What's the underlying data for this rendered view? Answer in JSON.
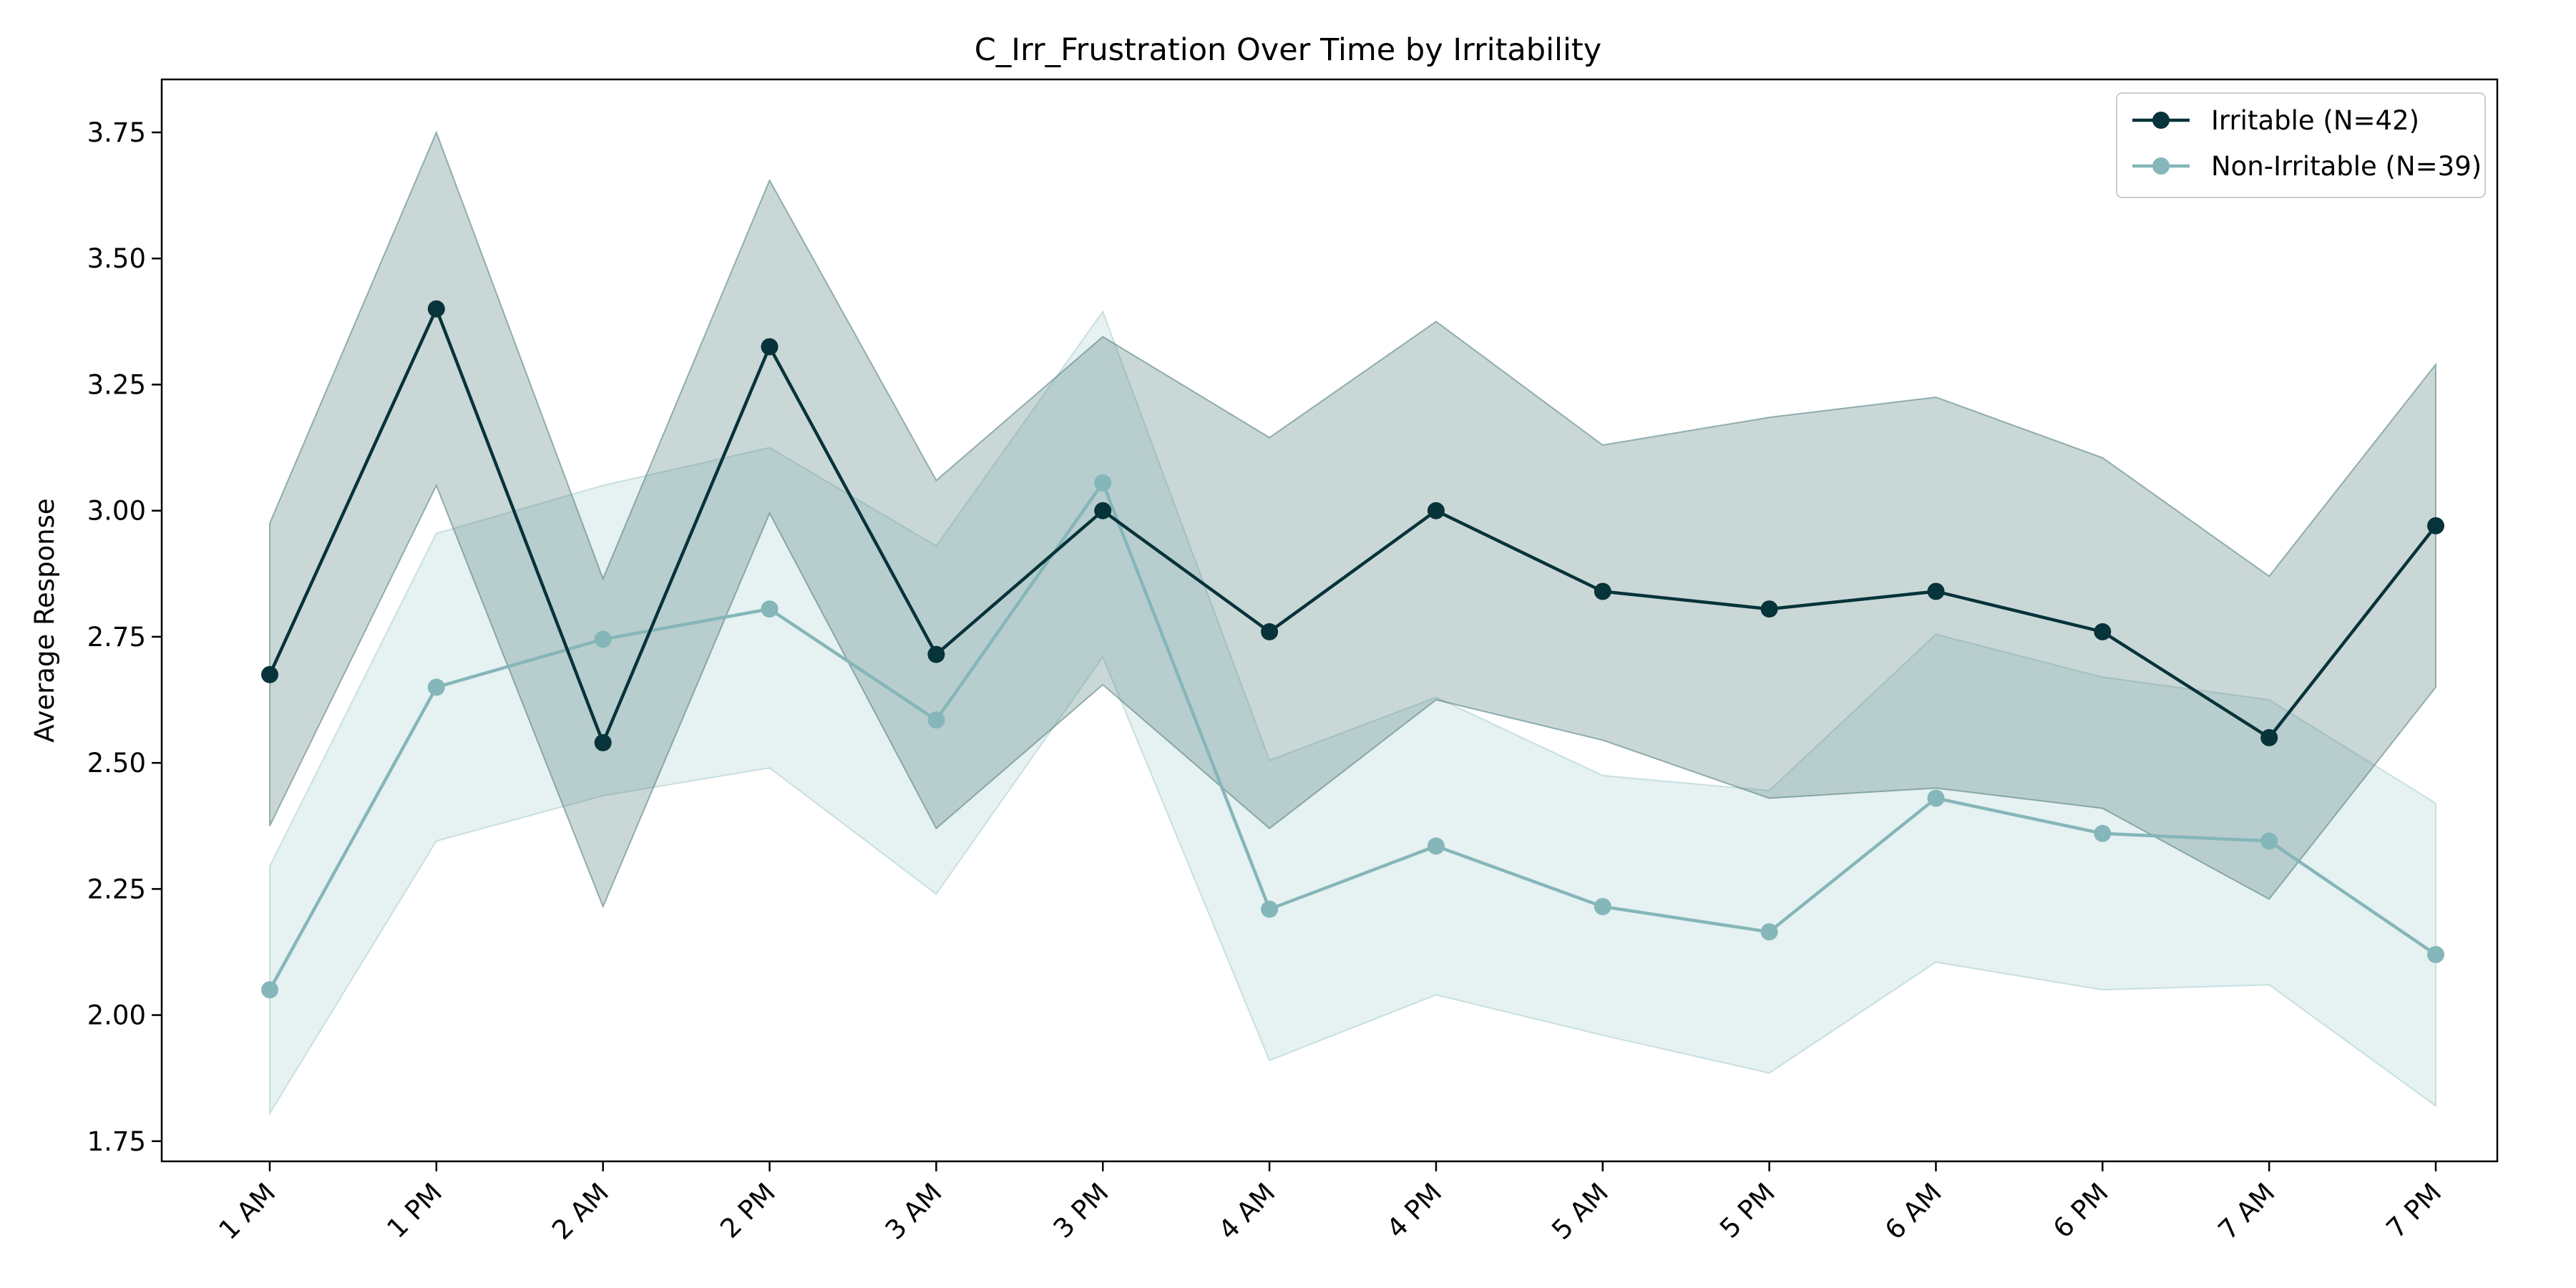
{
  "chart_data": {
    "type": "line",
    "title": "C_Irr_Frustration Over Time by Irritability",
    "xlabel": "",
    "ylabel": "Average Response",
    "categories": [
      "1 AM",
      "1 PM",
      "2 AM",
      "2 PM",
      "3 AM",
      "3 PM",
      "4 AM",
      "4 PM",
      "5 AM",
      "5 PM",
      "6 AM",
      "6 PM",
      "7 AM",
      "7 PM"
    ],
    "ylim": [
      1.71,
      3.855
    ],
    "yticks": [
      1.75,
      2.0,
      2.25,
      2.5,
      2.75,
      3.0,
      3.25,
      3.5,
      3.75
    ],
    "ytick_labels": [
      "1.75",
      "2.00",
      "2.25",
      "2.50",
      "2.75",
      "3.00",
      "3.25",
      "3.50",
      "3.75"
    ],
    "grid": false,
    "legend_position": "top-right",
    "series": [
      {
        "name": "Irritable (N=42)",
        "color": "#07333a",
        "band_color": "#4f7a7a",
        "values": [
          2.675,
          3.4,
          2.54,
          3.325,
          2.715,
          3.0,
          2.76,
          3.0,
          2.84,
          2.805,
          2.84,
          2.76,
          2.55,
          2.97
        ],
        "lower": [
          2.375,
          3.05,
          2.215,
          2.995,
          2.37,
          2.655,
          2.37,
          2.625,
          2.545,
          2.43,
          2.45,
          2.41,
          2.23,
          2.65
        ],
        "upper": [
          2.975,
          3.75,
          2.865,
          3.655,
          3.06,
          3.345,
          3.145,
          3.375,
          3.13,
          3.185,
          3.225,
          3.105,
          2.87,
          3.29
        ]
      },
      {
        "name": "Non-Irritable (N=39)",
        "color": "#85b6b9",
        "band_color": "#a5cccc",
        "values": [
          2.05,
          2.65,
          2.745,
          2.805,
          2.585,
          3.055,
          2.21,
          2.335,
          2.215,
          2.165,
          2.43,
          2.36,
          2.345,
          2.12
        ],
        "lower": [
          1.805,
          2.345,
          2.435,
          2.49,
          2.24,
          2.71,
          1.91,
          2.04,
          1.96,
          1.885,
          2.105,
          2.05,
          2.06,
          1.82
        ],
        "upper": [
          2.295,
          2.955,
          3.05,
          3.125,
          2.93,
          3.395,
          2.505,
          2.63,
          2.475,
          2.445,
          2.755,
          2.67,
          2.625,
          2.42
        ]
      }
    ]
  }
}
